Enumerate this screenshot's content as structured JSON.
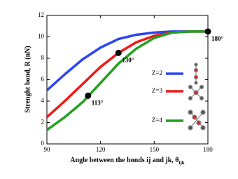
{
  "chart_data": {
    "type": "line",
    "xlabel": "Angle between the bonds ij and jk, θ",
    "xlabel_subscript": "ijk",
    "ylabel": "Strenght bond, R (nN)",
    "x": [
      90,
      100,
      110,
      120,
      130,
      140,
      150,
      160,
      170,
      180
    ],
    "series": [
      {
        "name": "Z=2",
        "color": "#2b45f0",
        "values": [
          5.0,
          6.5,
          7.9,
          9.0,
          9.8,
          10.2,
          10.4,
          10.5,
          10.5,
          10.5
        ]
      },
      {
        "name": "Z=3",
        "color": "#f01818",
        "values": [
          2.5,
          4.0,
          5.6,
          7.2,
          8.5,
          9.5,
          10.1,
          10.4,
          10.5,
          10.5
        ]
      },
      {
        "name": "Z=4",
        "color": "#22a022",
        "values": [
          1.3,
          2.5,
          3.9,
          5.7,
          7.5,
          8.9,
          9.9,
          10.4,
          10.5,
          10.5
        ]
      }
    ],
    "points": [
      {
        "x": 113,
        "y": 4.5,
        "label": "113°"
      },
      {
        "x": 130,
        "y": 8.5,
        "label": "130°"
      },
      {
        "x": 180,
        "y": 10.5,
        "label": "180°"
      }
    ],
    "xlim": [
      90,
      180
    ],
    "xticks": [
      90,
      120,
      150,
      180
    ],
    "ylim": [
      0,
      12
    ],
    "yticks": [
      0,
      2,
      4,
      6,
      8,
      10,
      12
    ]
  }
}
